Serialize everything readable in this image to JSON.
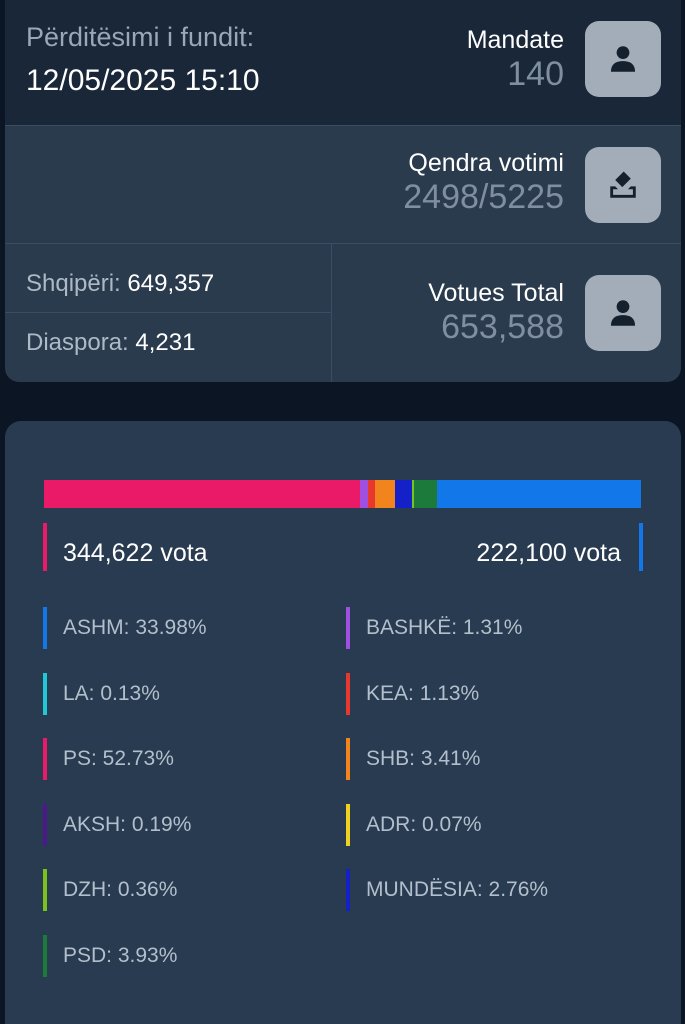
{
  "stats": {
    "updated_label": "Përditësimi i fundit:",
    "updated_value": "12/05/2025 15:10",
    "mandate_title": "Mandate",
    "mandate_value": "140",
    "qendra_title": "Qendra votimi",
    "qendra_value": "2498/5225",
    "votues_title": "Votues Total",
    "votues_value": "653,588",
    "shqiperi_label": "Shqipëri:",
    "shqiperi_value": "649,357",
    "diaspora_label": "Diaspora:",
    "diaspora_value": "4,231",
    "icons": {
      "mandate": "person-icon",
      "qendra": "ballot-box-icon",
      "votues": "person-icon"
    }
  },
  "results": {
    "left_votes": "344,622 vota",
    "right_votes": "222,100 vota",
    "left_color": "#ea1a69",
    "right_color": "#1277e8",
    "bar_segments": [
      {
        "party": "PS",
        "percent": 52.73,
        "color": "#ea1a69"
      },
      {
        "party": "BASHKË",
        "percent": 1.31,
        "color": "#a050e0"
      },
      {
        "party": "KEA",
        "percent": 1.13,
        "color": "#e8372c"
      },
      {
        "party": "SHB",
        "percent": 3.41,
        "color": "#f2841e"
      },
      {
        "party": "MUNDËSIA",
        "percent": 2.76,
        "color": "#1420c8"
      },
      {
        "party": "DZH",
        "percent": 0.36,
        "color": "#7ac21e"
      },
      {
        "party": "PSD",
        "percent": 3.93,
        "color": "#1c7a3a"
      },
      {
        "party": "ASHM",
        "percent": 33.98,
        "color": "#1277e8"
      }
    ],
    "legend": [
      {
        "label": "ASHM: 33.98%",
        "color": "#1277e8"
      },
      {
        "label": "BASHKË: 1.31%",
        "color": "#a050e0"
      },
      {
        "label": "LA: 0.13%",
        "color": "#22c7d6"
      },
      {
        "label": "KEA: 1.13%",
        "color": "#e8372c"
      },
      {
        "label": "PS: 52.73%",
        "color": "#ea1a69"
      },
      {
        "label": "SHB: 3.41%",
        "color": "#f2841e"
      },
      {
        "label": "AKSH: 0.19%",
        "color": "#4a1a8a"
      },
      {
        "label": "ADR: 0.07%",
        "color": "#f0d020"
      },
      {
        "label": "DZH: 0.36%",
        "color": "#7ac21e"
      },
      {
        "label": "MUNDËSIA: 2.76%",
        "color": "#1420c8"
      },
      {
        "label": "PSD: 3.93%",
        "color": "#1c7a3a"
      }
    ]
  }
}
